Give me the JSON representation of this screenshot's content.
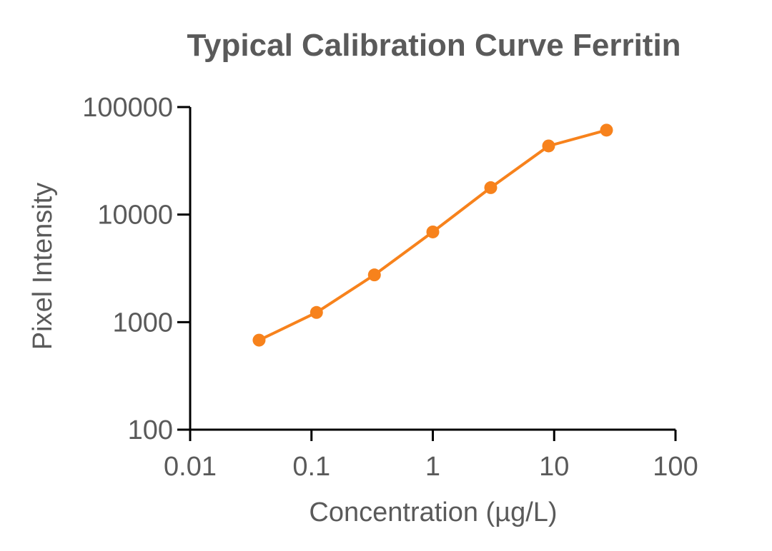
{
  "chart_data": {
    "type": "line",
    "title": "Typical Calibration Curve Ferritin",
    "xlabel": "Concentration (µg/L)",
    "ylabel": "Pixel Intensity",
    "x_scale": "log",
    "y_scale": "log",
    "xlim": [
      0.01,
      100
    ],
    "ylim": [
      100,
      100000
    ],
    "x_ticks": [
      0.01,
      0.1,
      1,
      10,
      100
    ],
    "x_tick_labels": [
      "0.01",
      "0.1",
      "1",
      "10",
      "100"
    ],
    "y_ticks": [
      100,
      1000,
      10000,
      100000
    ],
    "y_tick_labels": [
      "100",
      "1000",
      "10000",
      "100000"
    ],
    "grid": false,
    "legend": "none",
    "series": [
      {
        "color": "#f7821c",
        "x": [
          0.037,
          0.11,
          0.33,
          1.0,
          3.0,
          9.0,
          27.0
        ],
        "y": [
          680,
          1230,
          2750,
          6900,
          17800,
          43500,
          61000
        ]
      }
    ]
  }
}
